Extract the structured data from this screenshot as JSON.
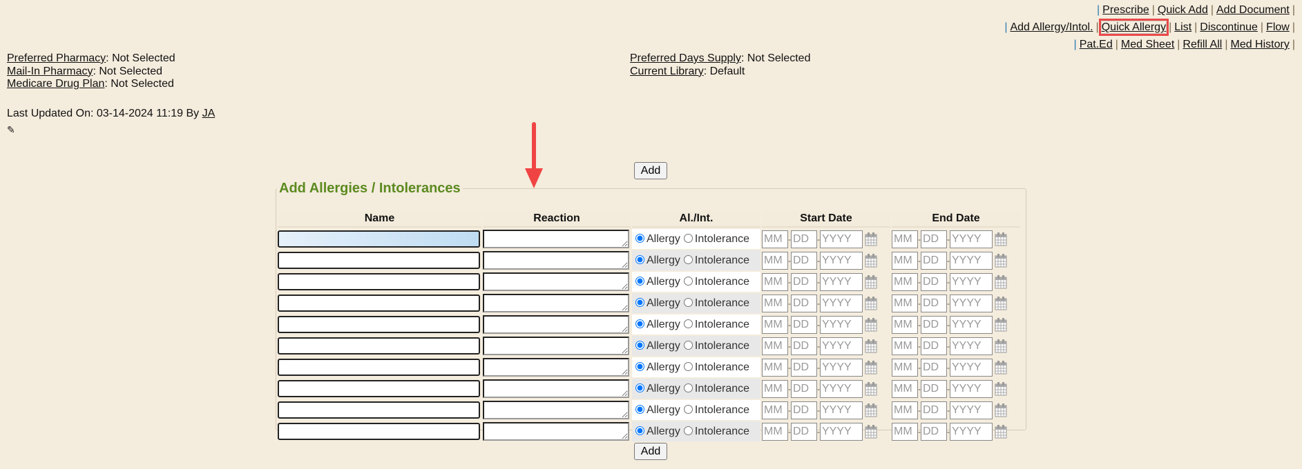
{
  "toplinks": {
    "row1": [
      "Prescribe",
      "Quick Add",
      "Add Document"
    ],
    "row2": [
      "Add Allergy/Intol.",
      "Quick Allergy",
      "List",
      "Discontinue",
      "Flow"
    ],
    "row3": [
      "Pat.Ed",
      "Med Sheet",
      "Refill All",
      "Med History"
    ],
    "highlighted": "Quick Allergy"
  },
  "info": {
    "preferred_pharmacy_label": "Preferred Pharmacy",
    "preferred_pharmacy": ": Not Selected",
    "mailin_label": "Mail-In Pharmacy",
    "mailin": ": Not Selected",
    "medicare_label": "Medicare Drug Plan",
    "medicare": ": Not Selected",
    "days_supply_label": "Preferred Days Supply",
    "days_supply": ": Not Selected",
    "library_label": "Current Library",
    "library": ": Default",
    "last_updated": "Last Updated On: 03-14-2024 11:19 By ",
    "last_updated_by": "JA"
  },
  "add_label": "Add",
  "form": {
    "title": "Add Allergies / Intolerances",
    "headers": {
      "name": "Name",
      "reaction": "Reaction",
      "type": "Al./Int.",
      "start": "Start Date",
      "end": "End Date"
    },
    "allergy_label": "Allergy",
    "intolerance_label": "Intolerance",
    "mm": "MM",
    "dd": "DD",
    "yyyy": "YYYY",
    "rows": [
      {
        "type": "Allergy"
      },
      {
        "type": "Allergy"
      },
      {
        "type": "Allergy"
      },
      {
        "type": "Allergy"
      },
      {
        "type": "Allergy"
      },
      {
        "type": "Allergy"
      },
      {
        "type": "Allergy"
      },
      {
        "type": "Allergy"
      },
      {
        "type": "Allergy"
      },
      {
        "type": "Allergy"
      }
    ]
  },
  "colors": {
    "accent": "#5b8a1f",
    "highlight": "#e84a4a",
    "background": "#f4ecdd"
  }
}
